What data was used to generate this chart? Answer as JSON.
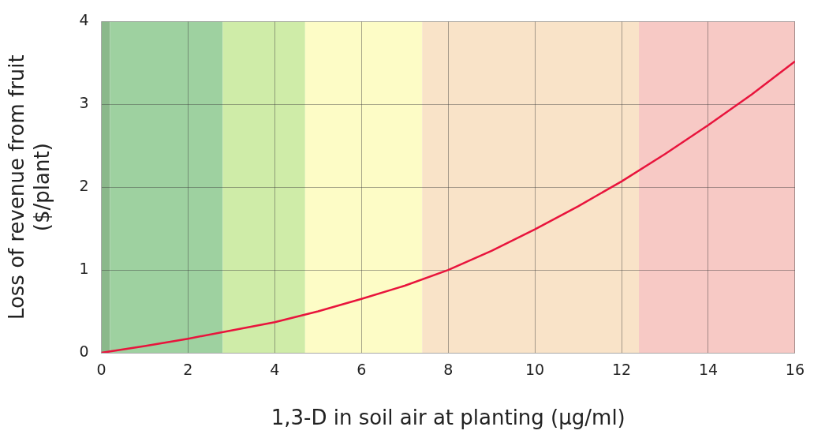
{
  "chart_data": {
    "type": "line",
    "xlabel": "1,3-D in soil air at planting (µg/ml)",
    "ylabel": "Loss of revenue from fruit\n($/plant)",
    "x": [
      0,
      1,
      2,
      3,
      4,
      5,
      6,
      7,
      8,
      9,
      10,
      11,
      12,
      13,
      14,
      15,
      16
    ],
    "series": [
      {
        "color": "#e8143c",
        "values": [
          0,
          0.08,
          0.17,
          0.27,
          0.37,
          0.5,
          0.65,
          0.81,
          1.0,
          1.23,
          1.49,
          1.77,
          2.07,
          2.4,
          2.75,
          3.12,
          3.52
        ]
      }
    ],
    "xlim": [
      0,
      16
    ],
    "xticks": [
      0,
      2,
      4,
      6,
      8,
      10,
      12,
      14,
      16
    ],
    "ylim": [
      0,
      4
    ],
    "yticks": [
      0,
      1,
      2,
      3,
      4
    ],
    "bands": [
      {
        "axis": "x",
        "from": 0,
        "to": 0.2,
        "color": "#8bb88b"
      },
      {
        "axis": "x",
        "from": 0.2,
        "to": 2.8,
        "color": "#9ed1a0"
      },
      {
        "axis": "x",
        "from": 2.8,
        "to": 4.7,
        "color": "#cfeca8"
      },
      {
        "axis": "x",
        "from": 4.7,
        "to": 7.4,
        "color": "#fdfcc6"
      },
      {
        "axis": "x",
        "from": 7.4,
        "to": 12.4,
        "color": "#f9e3c8"
      },
      {
        "axis": "x",
        "from": 12.4,
        "to": 16,
        "color": "#f7c9c5"
      }
    ],
    "grid": true,
    "marker": "none",
    "line_style": "solid",
    "legend": false
  }
}
